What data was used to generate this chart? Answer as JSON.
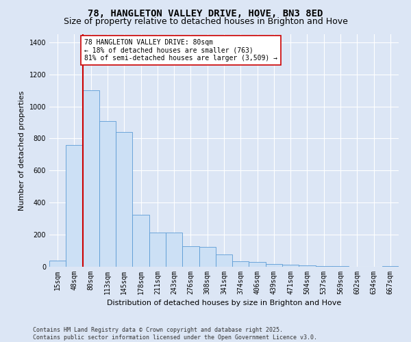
{
  "title": "78, HANGLETON VALLEY DRIVE, HOVE, BN3 8ED",
  "subtitle": "Size of property relative to detached houses in Brighton and Hove",
  "xlabel": "Distribution of detached houses by size in Brighton and Hove",
  "ylabel": "Number of detached properties",
  "categories": [
    "15sqm",
    "48sqm",
    "80sqm",
    "113sqm",
    "145sqm",
    "178sqm",
    "211sqm",
    "243sqm",
    "276sqm",
    "308sqm",
    "341sqm",
    "374sqm",
    "406sqm",
    "439sqm",
    "471sqm",
    "504sqm",
    "537sqm",
    "569sqm",
    "602sqm",
    "634sqm",
    "667sqm"
  ],
  "values": [
    40,
    760,
    1100,
    910,
    840,
    325,
    215,
    215,
    130,
    125,
    75,
    35,
    28,
    18,
    13,
    8,
    6,
    4,
    2,
    2,
    3
  ],
  "bar_color": "#cce0f5",
  "bar_edge_color": "#5b9bd5",
  "vline_index": 2,
  "vline_color": "#cc0000",
  "annotation_text": "78 HANGLETON VALLEY DRIVE: 80sqm\n← 18% of detached houses are smaller (763)\n81% of semi-detached houses are larger (3,509) →",
  "annotation_box_color": "#ffffff",
  "annotation_box_edge_color": "#cc0000",
  "ylim": [
    0,
    1450
  ],
  "yticks": [
    0,
    200,
    400,
    600,
    800,
    1000,
    1200,
    1400
  ],
  "background_color": "#dce6f5",
  "plot_background_color": "#dce6f5",
  "grid_color": "#ffffff",
  "footer_text": "Contains HM Land Registry data © Crown copyright and database right 2025.\nContains public sector information licensed under the Open Government Licence v3.0.",
  "title_fontsize": 10,
  "subtitle_fontsize": 9,
  "ylabel_fontsize": 8,
  "xlabel_fontsize": 8,
  "tick_fontsize": 7,
  "annotation_fontsize": 7,
  "footer_fontsize": 6
}
